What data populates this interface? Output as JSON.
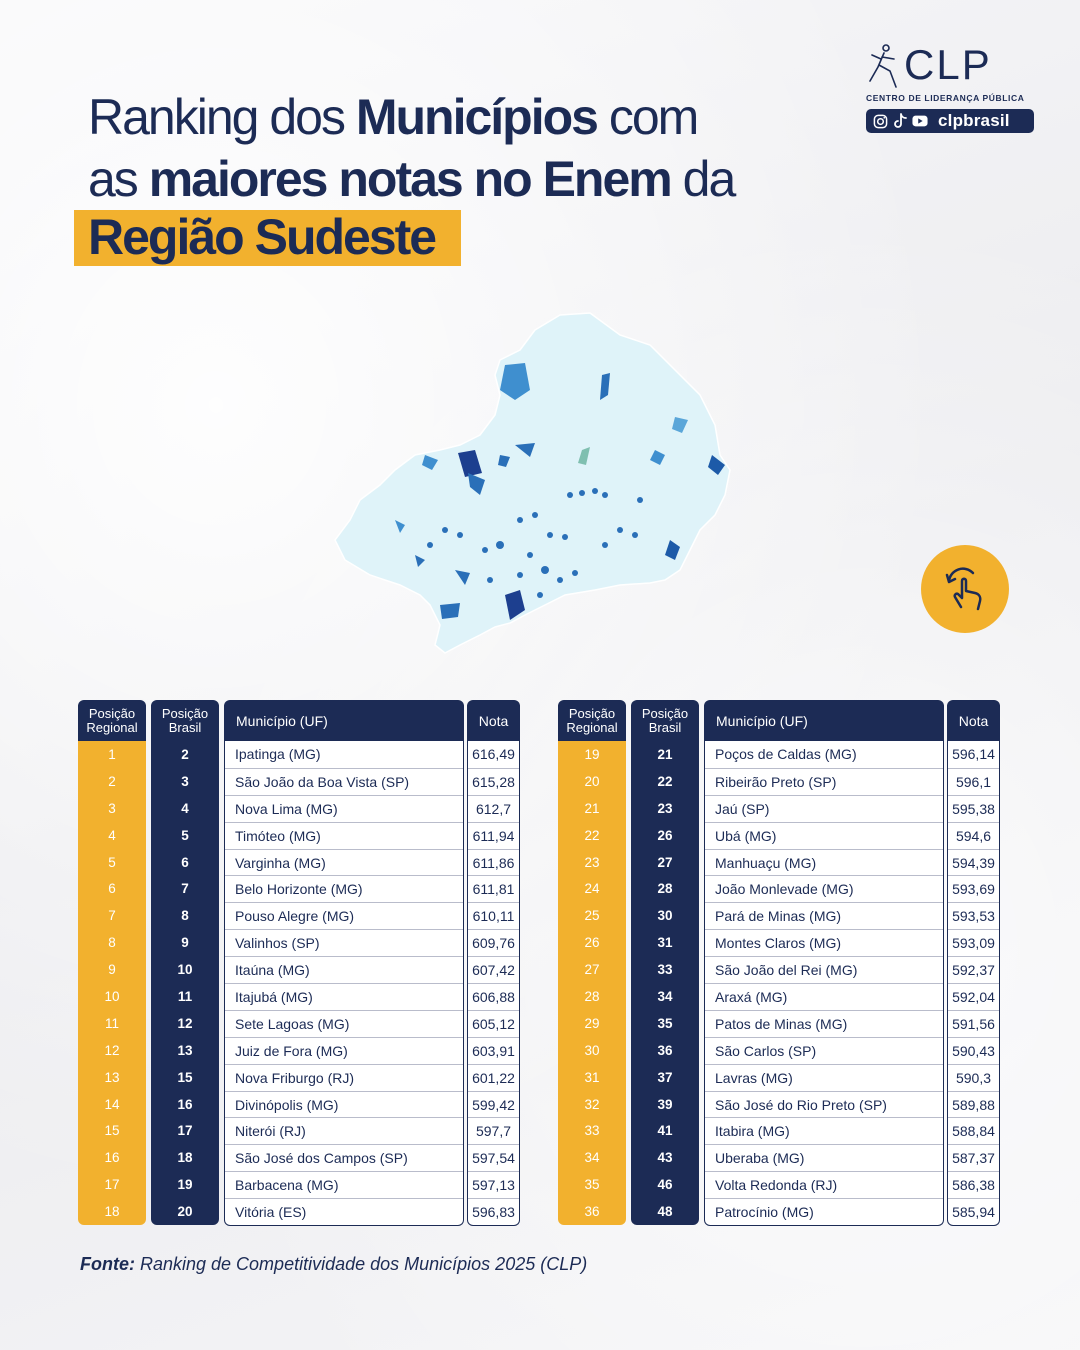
{
  "title": {
    "line1_pre": "Ranking dos ",
    "line1_bold": "Municípios",
    "line1_post": " com",
    "line2_pre": "as ",
    "line2_bold": "maiores notas no Enem",
    "line2_post": " da",
    "highlight": "Região Sudeste"
  },
  "brand": {
    "name": "CLP",
    "subtitle": "CENTRO DE LIDERANÇA PÚBLICA",
    "handle": "clpbrasil"
  },
  "headers": {
    "pos_regional": "Posição Regional",
    "pos_brasil": "Posição Brasil",
    "municipio": "Município (UF)",
    "nota": "Nota"
  },
  "table_left": [
    {
      "regional": "1",
      "brasil": "2",
      "municipio": "Ipatinga (MG)",
      "nota": "616,49"
    },
    {
      "regional": "2",
      "brasil": "3",
      "municipio": "São João da Boa Vista (SP)",
      "nota": "615,28"
    },
    {
      "regional": "3",
      "brasil": "4",
      "municipio": "Nova Lima (MG)",
      "nota": "612,7"
    },
    {
      "regional": "4",
      "brasil": "5",
      "municipio": "Timóteo (MG)",
      "nota": "611,94"
    },
    {
      "regional": "5",
      "brasil": "6",
      "municipio": "Varginha (MG)",
      "nota": "611,86"
    },
    {
      "regional": "6",
      "brasil": "7",
      "municipio": "Belo Horizonte (MG)",
      "nota": "611,81"
    },
    {
      "regional": "7",
      "brasil": "8",
      "municipio": "Pouso Alegre (MG)",
      "nota": "610,11"
    },
    {
      "regional": "8",
      "brasil": "9",
      "municipio": "Valinhos (SP)",
      "nota": "609,76"
    },
    {
      "regional": "9",
      "brasil": "10",
      "municipio": "Itaúna (MG)",
      "nota": "607,42"
    },
    {
      "regional": "10",
      "brasil": "11",
      "municipio": "Itajubá (MG)",
      "nota": "606,88"
    },
    {
      "regional": "11",
      "brasil": "12",
      "municipio": "Sete Lagoas (MG)",
      "nota": "605,12"
    },
    {
      "regional": "12",
      "brasil": "13",
      "municipio": "Juiz de Fora (MG)",
      "nota": "603,91"
    },
    {
      "regional": "13",
      "brasil": "15",
      "municipio": "Nova Friburgo (RJ)",
      "nota": "601,22"
    },
    {
      "regional": "14",
      "brasil": "16",
      "municipio": "Divinópolis (MG)",
      "nota": "599,42"
    },
    {
      "regional": "15",
      "brasil": "17",
      "municipio": "Niterói (RJ)",
      "nota": "597,7"
    },
    {
      "regional": "16",
      "brasil": "18",
      "municipio": "São José dos Campos (SP)",
      "nota": "597,54"
    },
    {
      "regional": "17",
      "brasil": "19",
      "municipio": "Barbacena (MG)",
      "nota": "597,13"
    },
    {
      "regional": "18",
      "brasil": "20",
      "municipio": "Vitória (ES)",
      "nota": "596,83"
    }
  ],
  "table_right": [
    {
      "regional": "19",
      "brasil": "21",
      "municipio": "Poços de Caldas (MG)",
      "nota": "596,14"
    },
    {
      "regional": "20",
      "brasil": "22",
      "municipio": "Ribeirão Preto (SP)",
      "nota": "596,1"
    },
    {
      "regional": "21",
      "brasil": "23",
      "municipio": "Jaú (SP)",
      "nota": "595,38"
    },
    {
      "regional": "22",
      "brasil": "26",
      "municipio": "Ubá (MG)",
      "nota": "594,6"
    },
    {
      "regional": "23",
      "brasil": "27",
      "municipio": "Manhuaçu (MG)",
      "nota": "594,39"
    },
    {
      "regional": "24",
      "brasil": "28",
      "municipio": "João Monlevade (MG)",
      "nota": "593,69"
    },
    {
      "regional": "25",
      "brasil": "30",
      "municipio": "Pará de Minas (MG)",
      "nota": "593,53"
    },
    {
      "regional": "26",
      "brasil": "31",
      "municipio": "Montes Claros (MG)",
      "nota": "593,09"
    },
    {
      "regional": "27",
      "brasil": "33",
      "municipio": "São João del Rei (MG)",
      "nota": "592,37"
    },
    {
      "regional": "28",
      "brasil": "34",
      "municipio": "Araxá (MG)",
      "nota": "592,04"
    },
    {
      "regional": "29",
      "brasil": "35",
      "municipio": "Patos de Minas (MG)",
      "nota": "591,56"
    },
    {
      "regional": "30",
      "brasil": "36",
      "municipio": "São Carlos (SP)",
      "nota": "590,43"
    },
    {
      "regional": "31",
      "brasil": "37",
      "municipio": "Lavras (MG)",
      "nota": "590,3"
    },
    {
      "regional": "32",
      "brasil": "39",
      "municipio": "São José do Rio Preto (SP)",
      "nota": "589,88"
    },
    {
      "regional": "33",
      "brasil": "41",
      "municipio": "Itabira (MG)",
      "nota": "588,84"
    },
    {
      "regional": "34",
      "brasil": "43",
      "municipio": "Uberaba (MG)",
      "nota": "587,37"
    },
    {
      "regional": "35",
      "brasil": "46",
      "municipio": "Volta Redonda (RJ)",
      "nota": "586,38"
    },
    {
      "regional": "36",
      "brasil": "48",
      "municipio": "Patrocínio (MG)",
      "nota": "585,94"
    }
  ],
  "source": {
    "label": "Fonte:",
    "text": " Ranking de Competitividade dos Municípios 2025 (CLP)"
  },
  "colors": {
    "navy": "#1c2b55",
    "gold": "#f2b12e"
  }
}
